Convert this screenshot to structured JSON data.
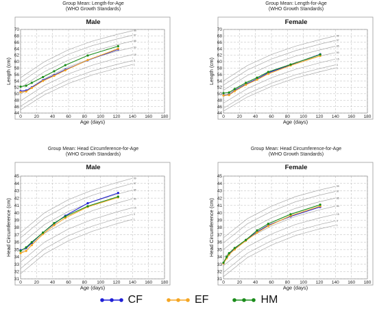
{
  "colors": {
    "CF": "#1f1fd6",
    "EF": "#f5a623",
    "HM": "#1a8c1a",
    "grid": "#b8b8b8",
    "curve": "#a9a9a9",
    "frame": "#999999"
  },
  "legend": [
    {
      "name": "CF",
      "color": "#1f1fd6"
    },
    {
      "name": "EF",
      "color": "#f5a623"
    },
    {
      "name": "HM",
      "color": "#1a8c1a"
    }
  ],
  "chart_data": [
    {
      "type": "line",
      "title": "Group Mean: Length-for-Age",
      "subtitle": "(WHO Growth Standards)",
      "panel_title": "Male",
      "xlabel": "Age (days)",
      "ylabel": "Length (cm)",
      "xlim": [
        0,
        180
      ],
      "ylim": [
        44,
        70
      ],
      "xticks": [
        0,
        20,
        40,
        60,
        80,
        100,
        120,
        140,
        160,
        180
      ],
      "yticks": [
        44,
        46,
        48,
        50,
        52,
        54,
        56,
        58,
        60,
        62,
        64,
        66,
        68,
        70
      ],
      "reference_labels": [
        "99",
        "97",
        "85",
        "50",
        "15",
        "3",
        "1"
      ],
      "reference_curves": [
        [
          [
            0,
            55.0
          ],
          [
            30,
            60.0
          ],
          [
            60,
            63.7
          ],
          [
            90,
            66.4
          ],
          [
            120,
            68.4
          ],
          [
            140,
            69.6
          ]
        ],
        [
          [
            0,
            53.6
          ],
          [
            30,
            58.6
          ],
          [
            60,
            62.3
          ],
          [
            90,
            65.0
          ],
          [
            120,
            67.0
          ],
          [
            140,
            68.2
          ]
        ],
        [
          [
            0,
            51.9
          ],
          [
            30,
            56.9
          ],
          [
            60,
            60.5
          ],
          [
            90,
            63.2
          ],
          [
            120,
            65.2
          ],
          [
            140,
            66.4
          ]
        ],
        [
          [
            0,
            49.9
          ],
          [
            30,
            54.7
          ],
          [
            60,
            58.4
          ],
          [
            90,
            61.1
          ],
          [
            120,
            63.2
          ],
          [
            140,
            64.4
          ]
        ],
        [
          [
            0,
            47.8
          ],
          [
            30,
            52.6
          ],
          [
            60,
            56.2
          ],
          [
            90,
            58.9
          ],
          [
            120,
            61.0
          ],
          [
            140,
            62.2
          ]
        ],
        [
          [
            0,
            46.1
          ],
          [
            30,
            50.8
          ],
          [
            60,
            54.4
          ],
          [
            90,
            57.1
          ],
          [
            120,
            59.1
          ],
          [
            140,
            60.3
          ]
        ],
        [
          [
            0,
            45.0
          ],
          [
            30,
            49.7
          ],
          [
            60,
            53.2
          ],
          [
            90,
            55.9
          ],
          [
            120,
            57.9
          ],
          [
            140,
            59.1
          ]
        ]
      ],
      "series": [
        {
          "name": "CF",
          "x": [
            0,
            7,
            14,
            28,
            42,
            56,
            84,
            122
          ],
          "y": [
            50.8,
            51.0,
            52.0,
            54.2,
            55.8,
            57.5,
            60.4,
            63.8
          ]
        },
        {
          "name": "EF",
          "x": [
            0,
            7,
            14,
            28,
            42,
            56,
            84,
            122
          ],
          "y": [
            50.5,
            50.7,
            51.8,
            54.0,
            55.6,
            57.3,
            60.5,
            64.0
          ]
        },
        {
          "name": "HM",
          "x": [
            0,
            7,
            14,
            28,
            42,
            56,
            84,
            122
          ],
          "y": [
            52.2,
            52.5,
            53.4,
            55.2,
            57.0,
            58.9,
            61.9,
            64.8
          ]
        }
      ]
    },
    {
      "type": "line",
      "title": "Group Mean: Length-for-Age",
      "subtitle": "(WHO Growth Standards)",
      "panel_title": "Female",
      "xlabel": "Age (days)",
      "ylabel": "Length (cm)",
      "xlim": [
        0,
        180
      ],
      "ylim": [
        44,
        70
      ],
      "xticks": [
        0,
        20,
        40,
        60,
        80,
        100,
        120,
        140,
        160,
        180
      ],
      "yticks": [
        44,
        46,
        48,
        50,
        52,
        54,
        56,
        58,
        60,
        62,
        64,
        66,
        68,
        70
      ],
      "reference_labels": [
        "99",
        "97",
        "85",
        "50",
        "15",
        "3",
        "1"
      ],
      "reference_curves": [
        [
          [
            0,
            54.0
          ],
          [
            30,
            58.8
          ],
          [
            60,
            62.2
          ],
          [
            90,
            64.8
          ],
          [
            120,
            66.8
          ],
          [
            140,
            68.0
          ]
        ],
        [
          [
            0,
            52.7
          ],
          [
            30,
            57.4
          ],
          [
            60,
            60.8
          ],
          [
            90,
            63.4
          ],
          [
            120,
            65.4
          ],
          [
            140,
            66.6
          ]
        ],
        [
          [
            0,
            51.1
          ],
          [
            30,
            55.7
          ],
          [
            60,
            59.1
          ],
          [
            90,
            61.7
          ],
          [
            120,
            63.6
          ],
          [
            140,
            64.8
          ]
        ],
        [
          [
            0,
            49.1
          ],
          [
            30,
            53.7
          ],
          [
            60,
            57.1
          ],
          [
            90,
            59.7
          ],
          [
            120,
            61.7
          ],
          [
            140,
            62.8
          ]
        ],
        [
          [
            0,
            47.1
          ],
          [
            30,
            51.6
          ],
          [
            60,
            55.0
          ],
          [
            90,
            57.6
          ],
          [
            120,
            59.6
          ],
          [
            140,
            60.8
          ]
        ],
        [
          [
            0,
            45.5
          ],
          [
            30,
            50.0
          ],
          [
            60,
            53.3
          ],
          [
            90,
            55.9
          ],
          [
            120,
            57.8
          ],
          [
            140,
            59.0
          ]
        ],
        [
          [
            0,
            44.6
          ],
          [
            30,
            49.0
          ],
          [
            60,
            52.3
          ],
          [
            90,
            54.9
          ],
          [
            120,
            56.8
          ],
          [
            140,
            58.0
          ]
        ]
      ],
      "series": [
        {
          "name": "CF",
          "x": [
            0,
            7,
            14,
            28,
            42,
            56,
            84,
            121
          ],
          "y": [
            49.6,
            49.7,
            51.0,
            53.0,
            54.6,
            56.5,
            59.0,
            62.3
          ]
        },
        {
          "name": "EF",
          "x": [
            0,
            7,
            14,
            28,
            42,
            56,
            84,
            121
          ],
          "y": [
            49.5,
            49.6,
            50.8,
            52.8,
            54.4,
            56.2,
            58.8,
            61.8
          ]
        },
        {
          "name": "HM",
          "x": [
            0,
            7,
            14,
            28,
            42,
            56,
            84,
            121
          ],
          "y": [
            50.2,
            50.4,
            51.5,
            53.4,
            55.0,
            56.8,
            59.1,
            62.2
          ]
        }
      ]
    },
    {
      "type": "line",
      "title": "Group Mean: Head Circumference-for-Age",
      "subtitle": "(WHO Growth Standards)",
      "panel_title": "Male",
      "xlabel": "Age (days)",
      "ylabel": "Head Circumference (cm)",
      "xlim": [
        0,
        180
      ],
      "ylim": [
        31,
        45
      ],
      "xticks": [
        0,
        20,
        40,
        60,
        80,
        100,
        120,
        140,
        160,
        180
      ],
      "yticks": [
        31,
        32,
        33,
        34,
        35,
        36,
        37,
        38,
        39,
        40,
        41,
        42,
        43,
        44,
        45
      ],
      "reference_labels": [
        "99",
        "97",
        "85",
        "50",
        "15",
        "3",
        "1"
      ],
      "reference_curves": [
        [
          [
            0,
            37.3
          ],
          [
            30,
            40.0
          ],
          [
            60,
            41.8
          ],
          [
            90,
            43.1
          ],
          [
            120,
            44.1
          ],
          [
            140,
            44.7
          ]
        ],
        [
          [
            0,
            36.6
          ],
          [
            30,
            39.3
          ],
          [
            60,
            41.1
          ],
          [
            90,
            42.4
          ],
          [
            120,
            43.4
          ],
          [
            140,
            44.0
          ]
        ],
        [
          [
            0,
            35.7
          ],
          [
            30,
            38.4
          ],
          [
            60,
            40.2
          ],
          [
            90,
            41.5
          ],
          [
            120,
            42.5
          ],
          [
            140,
            43.1
          ]
        ],
        [
          [
            0,
            34.5
          ],
          [
            30,
            37.2
          ],
          [
            60,
            39.0
          ],
          [
            90,
            40.3
          ],
          [
            120,
            41.3
          ],
          [
            140,
            41.9
          ]
        ],
        [
          [
            0,
            33.3
          ],
          [
            30,
            36.0
          ],
          [
            60,
            37.8
          ],
          [
            90,
            39.1
          ],
          [
            120,
            40.1
          ],
          [
            140,
            40.7
          ]
        ],
        [
          [
            0,
            32.4
          ],
          [
            30,
            35.1
          ],
          [
            60,
            36.9
          ],
          [
            90,
            38.2
          ],
          [
            120,
            39.2
          ],
          [
            140,
            39.8
          ]
        ],
        [
          [
            0,
            31.7
          ],
          [
            30,
            34.4
          ],
          [
            60,
            36.2
          ],
          [
            90,
            37.5
          ],
          [
            120,
            38.5
          ],
          [
            140,
            39.1
          ]
        ]
      ],
      "series": [
        {
          "name": "CF",
          "x": [
            0,
            7,
            14,
            28,
            42,
            56,
            84,
            122
          ],
          "y": [
            34.9,
            35.2,
            35.9,
            37.3,
            38.5,
            39.6,
            41.3,
            42.7
          ]
        },
        {
          "name": "EF",
          "x": [
            0,
            7,
            14,
            28,
            42,
            56,
            84,
            122
          ],
          "y": [
            34.5,
            34.8,
            35.6,
            37.1,
            38.3,
            39.3,
            40.8,
            42.1
          ]
        },
        {
          "name": "HM",
          "x": [
            0,
            7,
            14,
            28,
            42,
            56,
            84,
            122
          ],
          "y": [
            34.8,
            35.3,
            36.0,
            37.3,
            38.6,
            39.5,
            40.9,
            42.2
          ]
        }
      ]
    },
    {
      "type": "line",
      "title": "Group Mean: Head Circumference-for-Age",
      "subtitle": "(WHO Growth Standards)",
      "panel_title": "Female",
      "xlabel": "Age (days)",
      "ylabel": "Head Circumference (cm)",
      "xlim": [
        0,
        180
      ],
      "ylim": [
        31,
        45
      ],
      "xticks": [
        0,
        20,
        40,
        60,
        80,
        100,
        120,
        140,
        160,
        180
      ],
      "yticks": [
        31,
        32,
        33,
        34,
        35,
        36,
        37,
        38,
        39,
        40,
        41,
        42,
        43,
        44,
        45
      ],
      "reference_labels": [
        "99",
        "97",
        "85",
        "50",
        "15",
        "3",
        "1"
      ],
      "reference_curves": [
        [
          [
            0,
            36.6
          ],
          [
            30,
            39.2
          ],
          [
            60,
            40.9
          ],
          [
            90,
            42.2
          ],
          [
            120,
            43.1
          ],
          [
            140,
            43.6
          ]
        ],
        [
          [
            0,
            35.9
          ],
          [
            30,
            38.5
          ],
          [
            60,
            40.2
          ],
          [
            90,
            41.5
          ],
          [
            120,
            42.4
          ],
          [
            140,
            42.9
          ]
        ],
        [
          [
            0,
            35.0
          ],
          [
            30,
            37.6
          ],
          [
            60,
            39.3
          ],
          [
            90,
            40.6
          ],
          [
            120,
            41.5
          ],
          [
            140,
            42.0
          ]
        ],
        [
          [
            0,
            33.9
          ],
          [
            30,
            36.5
          ],
          [
            60,
            38.2
          ],
          [
            90,
            39.5
          ],
          [
            120,
            40.4
          ],
          [
            140,
            40.9
          ]
        ],
        [
          [
            0,
            32.8
          ],
          [
            30,
            35.4
          ],
          [
            60,
            37.1
          ],
          [
            90,
            38.4
          ],
          [
            120,
            39.3
          ],
          [
            140,
            39.8
          ]
        ],
        [
          [
            0,
            31.9
          ],
          [
            30,
            34.5
          ],
          [
            60,
            36.2
          ],
          [
            90,
            37.5
          ],
          [
            120,
            38.4
          ],
          [
            140,
            38.9
          ]
        ],
        [
          [
            0,
            31.3
          ],
          [
            30,
            33.9
          ],
          [
            60,
            35.6
          ],
          [
            90,
            36.9
          ],
          [
            120,
            37.8
          ],
          [
            140,
            38.3
          ]
        ]
      ],
      "series": [
        {
          "name": "CF",
          "x": [
            0,
            4,
            7,
            14,
            28,
            42,
            56,
            84,
            121
          ],
          "y": [
            33.1,
            33.9,
            34.4,
            35.1,
            36.3,
            37.4,
            38.3,
            39.5,
            40.8
          ]
        },
        {
          "name": "EF",
          "x": [
            0,
            4,
            7,
            14,
            28,
            42,
            56,
            84,
            121
          ],
          "y": [
            33.1,
            33.8,
            34.3,
            35.0,
            36.2,
            37.3,
            38.2,
            39.6,
            40.9
          ]
        },
        {
          "name": "HM",
          "x": [
            0,
            4,
            7,
            14,
            28,
            42,
            56,
            84,
            121
          ],
          "y": [
            33.2,
            34.0,
            34.5,
            35.2,
            36.3,
            37.6,
            38.5,
            39.8,
            41.1
          ]
        }
      ]
    }
  ]
}
